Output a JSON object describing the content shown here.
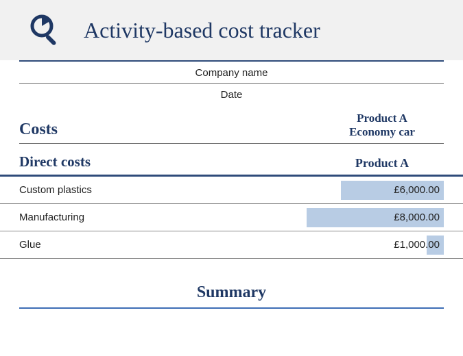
{
  "header": {
    "title": "Activity-based cost tracker",
    "icon": "magnifier-pie-icon",
    "icon_color": "#1f3864",
    "background": "#f1f1f1"
  },
  "meta": {
    "company_label": "Company name",
    "date_label": "Date"
  },
  "costs": {
    "title": "Costs",
    "product_label": "Product A",
    "product_subtitle": "Economy car"
  },
  "direct_costs": {
    "title": "Direct costs",
    "column_label": "Product A",
    "rows": [
      {
        "label": "Custom plastics",
        "value": "£6,000.00",
        "bar_pct": 75
      },
      {
        "label": "Manufacturing",
        "value": "£8,000.00",
        "bar_pct": 100
      },
      {
        "label": "Glue",
        "value": "£1,000.00",
        "bar_pct": 12.5
      }
    ],
    "bar_color": "#b8cce4",
    "max_value": 8000
  },
  "summary": {
    "title": "Summary"
  },
  "colors": {
    "heading": "#1f3864",
    "divider_dark": "#2e4b7a",
    "divider_blue": "#3d6db5",
    "text": "#222222"
  }
}
